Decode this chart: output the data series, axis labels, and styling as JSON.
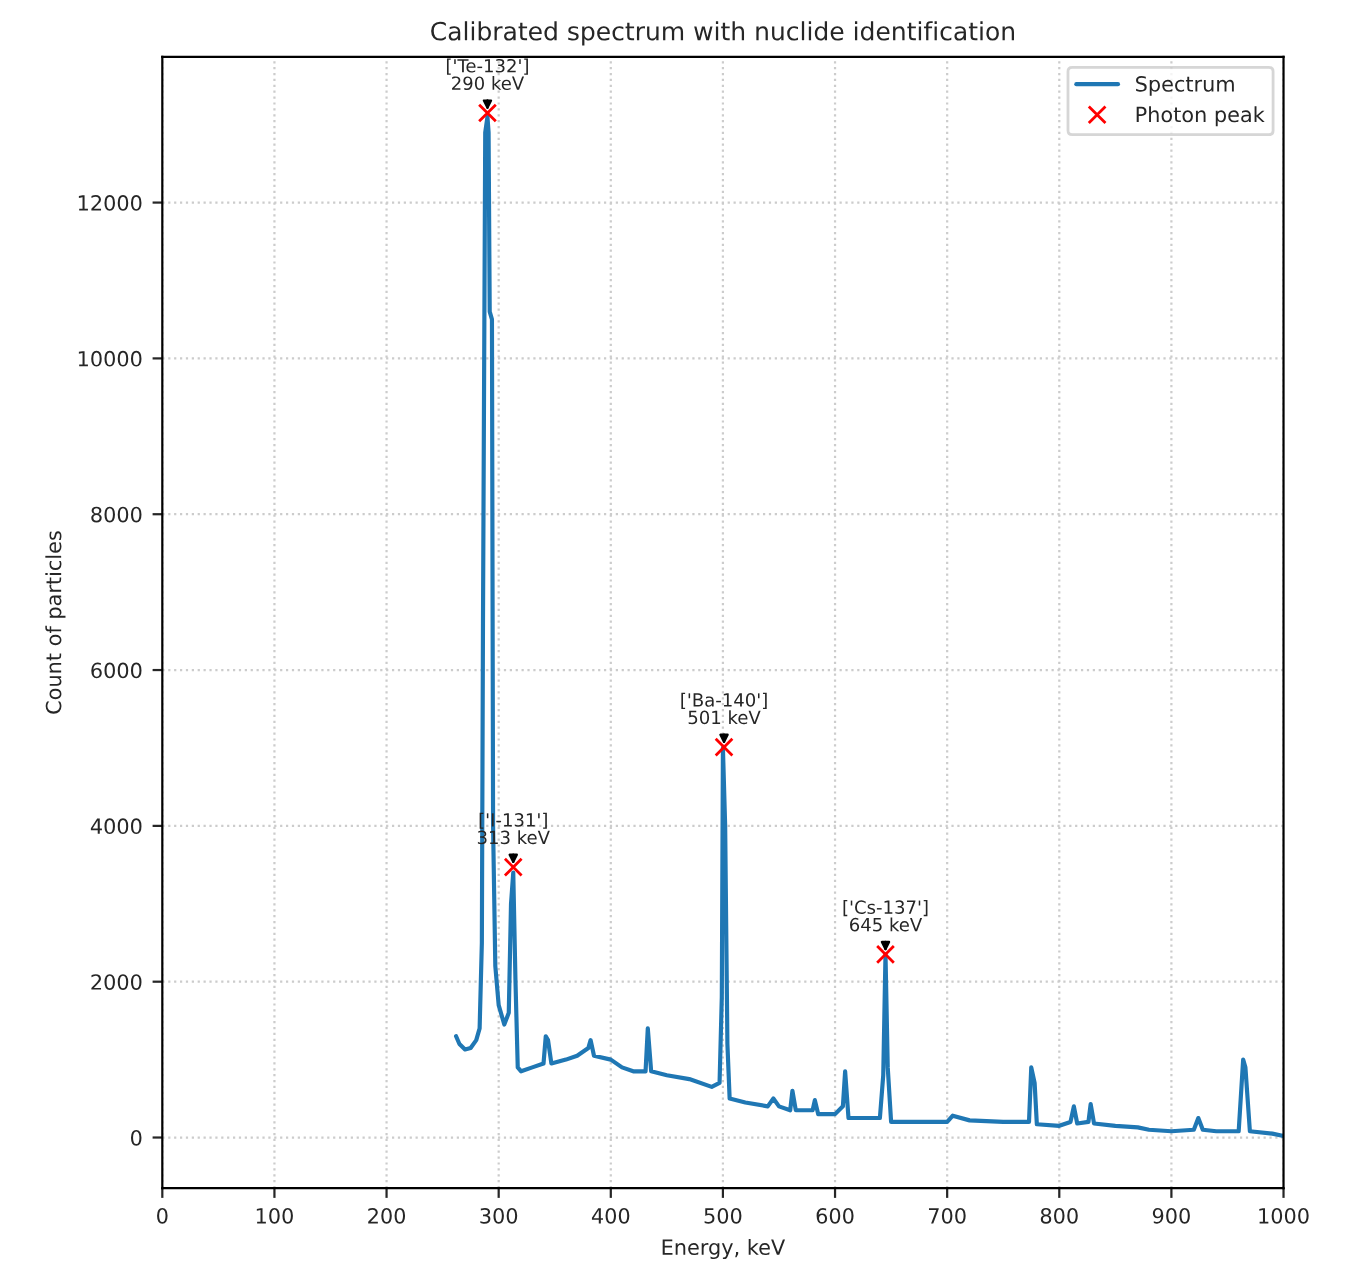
{
  "chart_data": {
    "type": "line",
    "title": "Calibrated spectrum with nuclide identification",
    "xlabel": "Energy, keV",
    "ylabel": "Count of particles",
    "xlim": [
      0,
      1000
    ],
    "xticks": [
      0,
      100,
      200,
      300,
      400,
      500,
      600,
      700,
      800,
      900,
      1000
    ],
    "ylim": [
      -650,
      13870
    ],
    "yticks": [
      0,
      2000,
      4000,
      6000,
      8000,
      10000,
      12000
    ],
    "grid": true,
    "legend": "top right",
    "series": [
      {
        "name": "Spectrum",
        "color": "#1f77b4",
        "marker": "none",
        "line_style": "solid",
        "x": [
          262,
          265,
          270,
          275,
          280,
          283,
          285,
          286,
          288,
          290,
          291,
          292,
          294,
          295,
          297,
          300,
          305,
          309,
          311,
          313,
          315,
          317,
          320,
          330,
          340,
          342,
          344,
          347,
          360,
          370,
          380,
          382,
          385,
          400,
          410,
          420,
          431,
          433,
          436,
          450,
          470,
          490,
          497,
          499,
          500,
          502,
          504,
          506,
          520,
          540,
          545,
          550,
          560,
          562,
          565,
          580,
          582,
          585,
          600,
          607,
          609,
          612,
          630,
          640,
          643,
          645,
          647,
          650,
          700,
          705,
          720,
          750,
          773,
          775,
          778,
          780,
          800,
          810,
          813,
          816,
          826,
          828,
          831,
          850,
          870,
          880,
          900,
          920,
          924,
          928,
          940,
          960,
          964,
          966,
          970,
          990,
          1000
        ],
        "values": [
          1300,
          1200,
          1130,
          1150,
          1250,
          1400,
          2500,
          6600,
          12900,
          13100,
          12900,
          10600,
          10500,
          4000,
          2200,
          1700,
          1450,
          1600,
          3000,
          3400,
          2000,
          900,
          850,
          900,
          950,
          1300,
          1250,
          950,
          1000,
          1050,
          1150,
          1250,
          1050,
          1000,
          900,
          850,
          850,
          1400,
          850,
          800,
          750,
          650,
          700,
          1800,
          5000,
          4000,
          1200,
          500,
          450,
          400,
          500,
          400,
          350,
          600,
          350,
          350,
          480,
          300,
          300,
          400,
          850,
          250,
          250,
          250,
          800,
          2350,
          900,
          200,
          200,
          280,
          220,
          200,
          200,
          900,
          700,
          170,
          150,
          200,
          400,
          180,
          200,
          430,
          180,
          150,
          130,
          100,
          80,
          100,
          250,
          100,
          80,
          80,
          1000,
          900,
          80,
          50,
          20
        ]
      },
      {
        "name": "Photon peak",
        "type": "scatter",
        "color": "#ff0000",
        "marker": "cross",
        "x": [
          290,
          313,
          501,
          645
        ],
        "values": [
          13150,
          3470,
          5010,
          2350
        ]
      }
    ],
    "annotations": [
      {
        "text": "['Te-132']\n290 keV",
        "x": 290,
        "y": 13150
      },
      {
        "text": "['I-131']\n313 keV",
        "x": 313,
        "y": 3470
      },
      {
        "text": "['Ba-140']\n501 keV",
        "x": 501,
        "y": 5010
      },
      {
        "text": "['Cs-137']\n645 keV",
        "x": 645,
        "y": 2350
      }
    ]
  }
}
